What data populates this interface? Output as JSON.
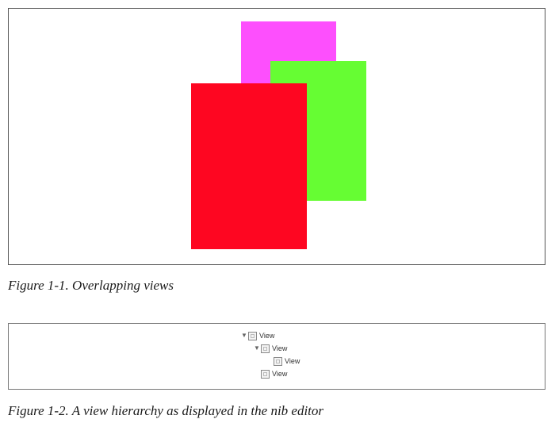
{
  "figure_1": {
    "caption": "Figure 1-1. Overlapping views",
    "views": [
      {
        "name": "magenta-view",
        "color": "#fd4ffd"
      },
      {
        "name": "green-view",
        "color": "#66fd33"
      },
      {
        "name": "red-view",
        "color": "#fe0621"
      }
    ]
  },
  "figure_2": {
    "caption": "Figure 1-2. A view hierarchy as displayed in the nib editor",
    "tree": [
      {
        "label": "View",
        "expanded": true
      },
      {
        "label": "View",
        "expanded": true
      },
      {
        "label": "View",
        "expanded": false
      },
      {
        "label": "View",
        "expanded": false
      }
    ],
    "disclosure_icon": "triangle-down-icon",
    "item_icon": "view-box-icon"
  }
}
